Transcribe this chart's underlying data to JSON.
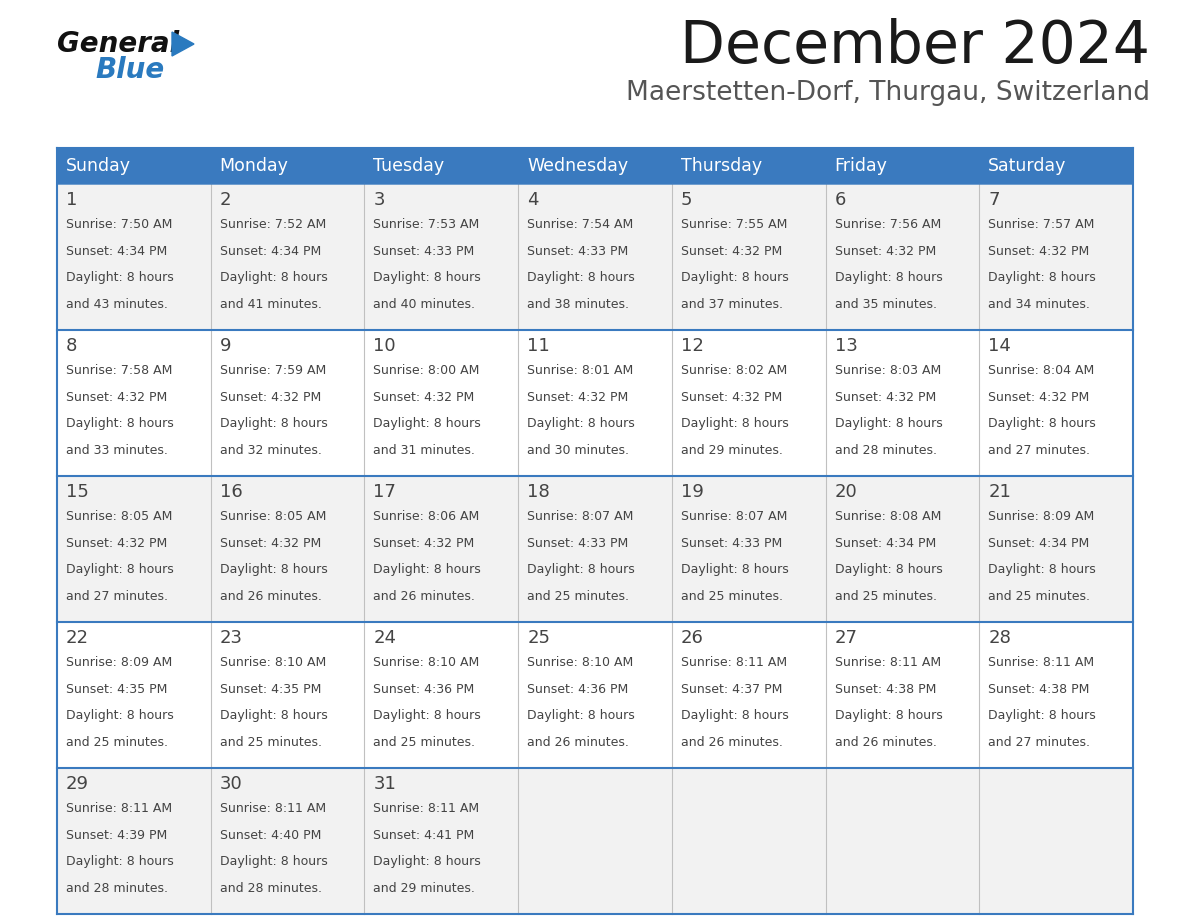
{
  "title": "December 2024",
  "subtitle": "Maerstetten-Dorf, Thurgau, Switzerland",
  "header_color": "#3a7abf",
  "header_text_color": "#ffffff",
  "cell_bg_even": "#f2f2f2",
  "cell_bg_odd": "#ffffff",
  "row_line_color": "#3a7abf",
  "vert_line_color": "#c0c0c0",
  "text_color": "#444444",
  "title_color": "#1a1a1a",
  "subtitle_color": "#555555",
  "days_of_week": [
    "Sunday",
    "Monday",
    "Tuesday",
    "Wednesday",
    "Thursday",
    "Friday",
    "Saturday"
  ],
  "calendar": [
    [
      {
        "day": 1,
        "sunrise": "7:50 AM",
        "sunset": "4:34 PM",
        "daylight": "8 hours and 43 minutes"
      },
      {
        "day": 2,
        "sunrise": "7:52 AM",
        "sunset": "4:34 PM",
        "daylight": "8 hours and 41 minutes"
      },
      {
        "day": 3,
        "sunrise": "7:53 AM",
        "sunset": "4:33 PM",
        "daylight": "8 hours and 40 minutes"
      },
      {
        "day": 4,
        "sunrise": "7:54 AM",
        "sunset": "4:33 PM",
        "daylight": "8 hours and 38 minutes"
      },
      {
        "day": 5,
        "sunrise": "7:55 AM",
        "sunset": "4:32 PM",
        "daylight": "8 hours and 37 minutes"
      },
      {
        "day": 6,
        "sunrise": "7:56 AM",
        "sunset": "4:32 PM",
        "daylight": "8 hours and 35 minutes"
      },
      {
        "day": 7,
        "sunrise": "7:57 AM",
        "sunset": "4:32 PM",
        "daylight": "8 hours and 34 minutes"
      }
    ],
    [
      {
        "day": 8,
        "sunrise": "7:58 AM",
        "sunset": "4:32 PM",
        "daylight": "8 hours and 33 minutes"
      },
      {
        "day": 9,
        "sunrise": "7:59 AM",
        "sunset": "4:32 PM",
        "daylight": "8 hours and 32 minutes"
      },
      {
        "day": 10,
        "sunrise": "8:00 AM",
        "sunset": "4:32 PM",
        "daylight": "8 hours and 31 minutes"
      },
      {
        "day": 11,
        "sunrise": "8:01 AM",
        "sunset": "4:32 PM",
        "daylight": "8 hours and 30 minutes"
      },
      {
        "day": 12,
        "sunrise": "8:02 AM",
        "sunset": "4:32 PM",
        "daylight": "8 hours and 29 minutes"
      },
      {
        "day": 13,
        "sunrise": "8:03 AM",
        "sunset": "4:32 PM",
        "daylight": "8 hours and 28 minutes"
      },
      {
        "day": 14,
        "sunrise": "8:04 AM",
        "sunset": "4:32 PM",
        "daylight": "8 hours and 27 minutes"
      }
    ],
    [
      {
        "day": 15,
        "sunrise": "8:05 AM",
        "sunset": "4:32 PM",
        "daylight": "8 hours and 27 minutes"
      },
      {
        "day": 16,
        "sunrise": "8:05 AM",
        "sunset": "4:32 PM",
        "daylight": "8 hours and 26 minutes"
      },
      {
        "day": 17,
        "sunrise": "8:06 AM",
        "sunset": "4:32 PM",
        "daylight": "8 hours and 26 minutes"
      },
      {
        "day": 18,
        "sunrise": "8:07 AM",
        "sunset": "4:33 PM",
        "daylight": "8 hours and 25 minutes"
      },
      {
        "day": 19,
        "sunrise": "8:07 AM",
        "sunset": "4:33 PM",
        "daylight": "8 hours and 25 minutes"
      },
      {
        "day": 20,
        "sunrise": "8:08 AM",
        "sunset": "4:34 PM",
        "daylight": "8 hours and 25 minutes"
      },
      {
        "day": 21,
        "sunrise": "8:09 AM",
        "sunset": "4:34 PM",
        "daylight": "8 hours and 25 minutes"
      }
    ],
    [
      {
        "day": 22,
        "sunrise": "8:09 AM",
        "sunset": "4:35 PM",
        "daylight": "8 hours and 25 minutes"
      },
      {
        "day": 23,
        "sunrise": "8:10 AM",
        "sunset": "4:35 PM",
        "daylight": "8 hours and 25 minutes"
      },
      {
        "day": 24,
        "sunrise": "8:10 AM",
        "sunset": "4:36 PM",
        "daylight": "8 hours and 25 minutes"
      },
      {
        "day": 25,
        "sunrise": "8:10 AM",
        "sunset": "4:36 PM",
        "daylight": "8 hours and 26 minutes"
      },
      {
        "day": 26,
        "sunrise": "8:11 AM",
        "sunset": "4:37 PM",
        "daylight": "8 hours and 26 minutes"
      },
      {
        "day": 27,
        "sunrise": "8:11 AM",
        "sunset": "4:38 PM",
        "daylight": "8 hours and 26 minutes"
      },
      {
        "day": 28,
        "sunrise": "8:11 AM",
        "sunset": "4:38 PM",
        "daylight": "8 hours and 27 minutes"
      }
    ],
    [
      {
        "day": 29,
        "sunrise": "8:11 AM",
        "sunset": "4:39 PM",
        "daylight": "8 hours and 28 minutes"
      },
      {
        "day": 30,
        "sunrise": "8:11 AM",
        "sunset": "4:40 PM",
        "daylight": "8 hours and 28 minutes"
      },
      {
        "day": 31,
        "sunrise": "8:11 AM",
        "sunset": "4:41 PM",
        "daylight": "8 hours and 29 minutes"
      },
      null,
      null,
      null,
      null
    ]
  ],
  "logo_text1": "General",
  "logo_text2": "Blue",
  "logo_color1": "#111111",
  "logo_color2": "#2a7abf",
  "logo_triangle_color": "#2a7abf",
  "figw": 11.88,
  "figh": 9.18,
  "dpi": 100
}
